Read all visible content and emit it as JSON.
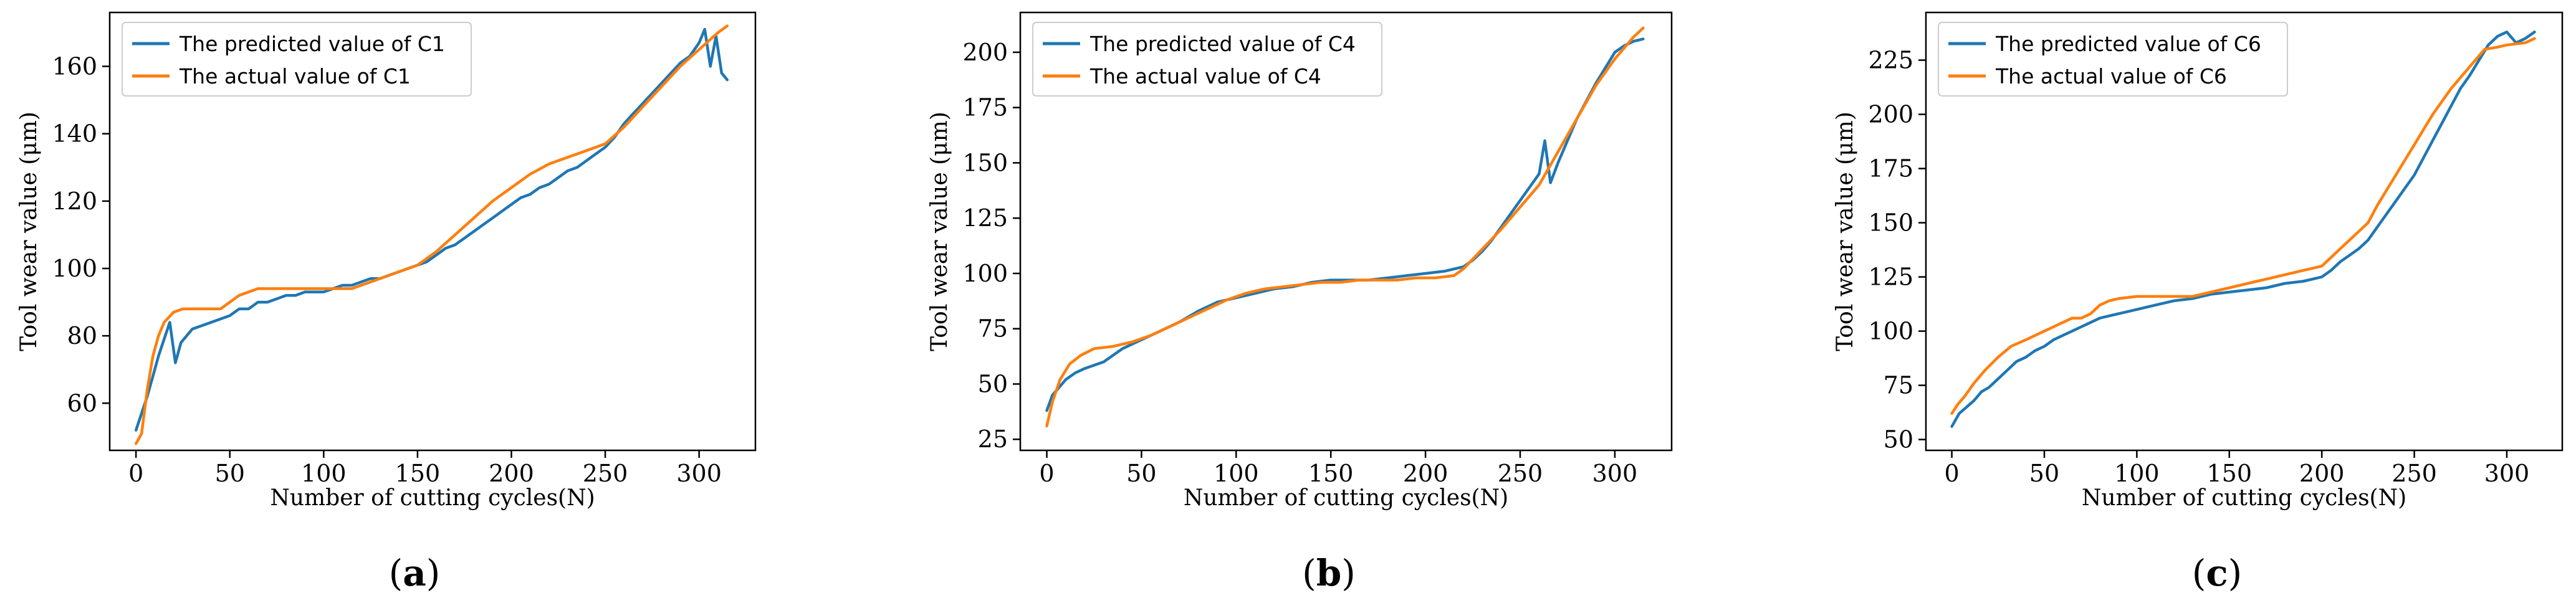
{
  "chart_data": [
    {
      "type": "line",
      "title": "",
      "caption_letter": "a",
      "xlabel": "Number of cutting cycles(N)",
      "ylabel": "Tool wear value (μm)",
      "xlim": [
        -14,
        330
      ],
      "ylim": [
        46,
        176
      ],
      "xticks": [
        0,
        50,
        100,
        150,
        200,
        250,
        300
      ],
      "yticks": [
        60,
        80,
        100,
        120,
        140,
        160
      ],
      "legend_position": "top-left",
      "series": [
        {
          "name": "The predicted value of C1",
          "color": "#1f77b4",
          "x": [
            0,
            3,
            6,
            9,
            12,
            15,
            18,
            21,
            24,
            27,
            30,
            35,
            40,
            45,
            50,
            55,
            60,
            65,
            70,
            75,
            80,
            85,
            90,
            95,
            100,
            105,
            110,
            115,
            120,
            125,
            130,
            135,
            140,
            145,
            150,
            155,
            160,
            165,
            170,
            175,
            180,
            185,
            190,
            195,
            200,
            205,
            210,
            215,
            220,
            225,
            230,
            235,
            240,
            245,
            250,
            255,
            260,
            265,
            270,
            275,
            280,
            285,
            290,
            295,
            300,
            303,
            306,
            309,
            312,
            315
          ],
          "values": [
            52,
            57,
            62,
            68,
            74,
            79,
            84,
            72,
            78,
            80,
            82,
            83,
            84,
            85,
            86,
            88,
            88,
            90,
            90,
            91,
            92,
            92,
            93,
            93,
            93,
            94,
            95,
            95,
            96,
            97,
            97,
            98,
            99,
            100,
            101,
            102,
            104,
            106,
            107,
            109,
            111,
            113,
            115,
            117,
            119,
            121,
            122,
            124,
            125,
            127,
            129,
            130,
            132,
            134,
            136,
            139,
            143,
            146,
            149,
            152,
            155,
            158,
            161,
            163,
            167,
            171,
            160,
            169,
            158,
            156
          ]
        },
        {
          "name": "The actual value of C1",
          "color": "#ff7f0e",
          "x": [
            0,
            3,
            6,
            9,
            12,
            15,
            20,
            25,
            30,
            40,
            45,
            50,
            55,
            60,
            65,
            70,
            80,
            90,
            100,
            110,
            115,
            120,
            130,
            140,
            150,
            160,
            170,
            180,
            190,
            200,
            210,
            220,
            230,
            240,
            250,
            260,
            270,
            280,
            290,
            300,
            310,
            315
          ],
          "values": [
            48,
            51,
            64,
            74,
            80,
            84,
            87,
            88,
            88,
            88,
            88,
            90,
            92,
            93,
            94,
            94,
            94,
            94,
            94,
            94,
            94,
            95,
            97,
            99,
            101,
            105,
            110,
            115,
            120,
            124,
            128,
            131,
            133,
            135,
            137,
            142,
            148,
            154,
            160,
            165,
            170,
            172
          ]
        }
      ]
    },
    {
      "type": "line",
      "title": "",
      "caption_letter": "b",
      "xlabel": "Number of cutting cycles(N)",
      "ylabel": "Tool wear value (μm)",
      "xlim": [
        -14,
        330
      ],
      "ylim": [
        20,
        218
      ],
      "xticks": [
        0,
        50,
        100,
        150,
        200,
        250,
        300
      ],
      "yticks": [
        25,
        50,
        75,
        100,
        125,
        150,
        175,
        200
      ],
      "legend_position": "top-left",
      "series": [
        {
          "name": "The predicted value of C4",
          "color": "#1f77b4",
          "x": [
            0,
            3,
            6,
            10,
            15,
            20,
            30,
            40,
            50,
            60,
            70,
            80,
            90,
            100,
            110,
            120,
            130,
            140,
            150,
            160,
            170,
            180,
            190,
            200,
            210,
            220,
            225,
            230,
            235,
            240,
            245,
            250,
            255,
            260,
            263,
            266,
            270,
            275,
            280,
            285,
            290,
            295,
            300,
            305,
            310,
            315
          ],
          "values": [
            38,
            45,
            48,
            52,
            55,
            57,
            60,
            66,
            70,
            74,
            78,
            83,
            87,
            89,
            91,
            93,
            94,
            96,
            97,
            97,
            97,
            98,
            99,
            100,
            101,
            103,
            106,
            110,
            115,
            121,
            127,
            133,
            139,
            145,
            160,
            141,
            150,
            160,
            170,
            178,
            186,
            193,
            200,
            203,
            205,
            206
          ]
        },
        {
          "name": "The actual value of C4",
          "color": "#ff7f0e",
          "x": [
            0,
            3,
            7,
            12,
            18,
            25,
            35,
            45,
            55,
            65,
            75,
            85,
            95,
            105,
            115,
            125,
            135,
            145,
            155,
            165,
            175,
            185,
            195,
            205,
            215,
            220,
            230,
            240,
            250,
            260,
            270,
            280,
            290,
            300,
            310,
            315
          ],
          "values": [
            31,
            42,
            52,
            59,
            63,
            66,
            67,
            69,
            72,
            76,
            80,
            84,
            88,
            91,
            93,
            94,
            95,
            96,
            96,
            97,
            97,
            97,
            98,
            98,
            99,
            102,
            111,
            120,
            130,
            140,
            155,
            170,
            185,
            197,
            207,
            211
          ]
        }
      ]
    },
    {
      "type": "line",
      "title": "",
      "caption_letter": "c",
      "xlabel": "Number of cutting cycles(N)",
      "ylabel": "Tool wear value (μm)",
      "xlim": [
        -14,
        330
      ],
      "ylim": [
        45,
        247
      ],
      "xticks": [
        0,
        50,
        100,
        150,
        200,
        250,
        300
      ],
      "yticks": [
        50,
        75,
        100,
        125,
        150,
        175,
        200,
        225
      ],
      "legend_position": "top-left",
      "series": [
        {
          "name": "The predicted value of C6",
          "color": "#1f77b4",
          "x": [
            0,
            4,
            8,
            12,
            16,
            20,
            25,
            30,
            35,
            40,
            45,
            50,
            55,
            60,
            65,
            70,
            75,
            80,
            85,
            90,
            95,
            100,
            110,
            120,
            130,
            140,
            150,
            160,
            170,
            180,
            190,
            200,
            205,
            210,
            215,
            220,
            225,
            230,
            235,
            240,
            245,
            250,
            255,
            260,
            265,
            270,
            275,
            280,
            285,
            290,
            295,
            300,
            305,
            310,
            315
          ],
          "values": [
            56,
            62,
            65,
            68,
            72,
            74,
            78,
            82,
            86,
            88,
            91,
            93,
            96,
            98,
            100,
            102,
            104,
            106,
            107,
            108,
            109,
            110,
            112,
            114,
            115,
            117,
            118,
            119,
            120,
            122,
            123,
            125,
            128,
            132,
            135,
            138,
            142,
            148,
            154,
            160,
            166,
            172,
            180,
            188,
            196,
            204,
            212,
            218,
            225,
            232,
            236,
            238,
            233,
            235,
            238
          ]
        },
        {
          "name": "The actual value of C6",
          "color": "#ff7f0e",
          "x": [
            0,
            3,
            7,
            12,
            18,
            25,
            32,
            40,
            50,
            60,
            65,
            70,
            75,
            80,
            85,
            90,
            100,
            110,
            120,
            130,
            140,
            150,
            160,
            170,
            180,
            190,
            195,
            200,
            210,
            220,
            225,
            230,
            240,
            250,
            260,
            270,
            280,
            288,
            295,
            300,
            310,
            315
          ],
          "values": [
            62,
            66,
            70,
            76,
            82,
            88,
            93,
            96,
            100,
            104,
            106,
            106,
            108,
            112,
            114,
            115,
            116,
            116,
            116,
            116,
            118,
            120,
            122,
            124,
            126,
            128,
            129,
            130,
            138,
            146,
            150,
            158,
            172,
            186,
            200,
            212,
            222,
            230,
            231,
            232,
            233,
            235
          ]
        }
      ]
    }
  ]
}
